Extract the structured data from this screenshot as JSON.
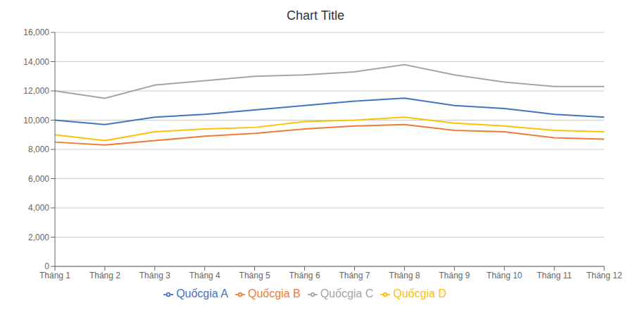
{
  "chart_data": {
    "type": "line",
    "title": "Chart Title",
    "categories": [
      "Tháng 1",
      "Tháng 2",
      "Tháng 3",
      "Tháng 4",
      "Tháng 5",
      "Tháng 6",
      "Tháng 7",
      "Tháng 8",
      "Tháng 9",
      "Tháng 10",
      "Tháng 11",
      "Tháng 12"
    ],
    "series": [
      {
        "name": "Quốcgia A",
        "color": "#4472C4",
        "values": [
          10000,
          9700,
          10200,
          10400,
          10700,
          11000,
          11300,
          11500,
          11000,
          10800,
          10400,
          10200
        ]
      },
      {
        "name": "Quốcgia B",
        "color": "#ED7D31",
        "values": [
          8500,
          8300,
          8600,
          8900,
          9100,
          9400,
          9600,
          9700,
          9300,
          9200,
          8800,
          8700
        ]
      },
      {
        "name": "Quốcgia C",
        "color": "#A5A5A5",
        "values": [
          12000,
          11500,
          12400,
          12700,
          13000,
          13100,
          13300,
          13800,
          13100,
          12600,
          12300,
          12300
        ]
      },
      {
        "name": "Quốcgia D",
        "color": "#FFC000",
        "values": [
          9000,
          8600,
          9200,
          9400,
          9500,
          9900,
          10000,
          10200,
          9800,
          9600,
          9300,
          9200
        ]
      }
    ],
    "ylim": [
      0,
      16000
    ],
    "yticks": [
      0,
      {
        "value": 2000,
        "label": "2,000"
      },
      {
        "value": 4000,
        "label": "4,000"
      },
      {
        "value": 6000,
        "label": "6,000"
      },
      {
        "value": 8000,
        "label": "8,000"
      },
      {
        "value": 10000,
        "label": "10,000"
      },
      {
        "value": 12000,
        "label": "12,000"
      },
      {
        "value": 14000,
        "label": "14,000"
      },
      {
        "value": 16000,
        "label": "16,000"
      }
    ],
    "grid": true,
    "legend": "bottom"
  }
}
